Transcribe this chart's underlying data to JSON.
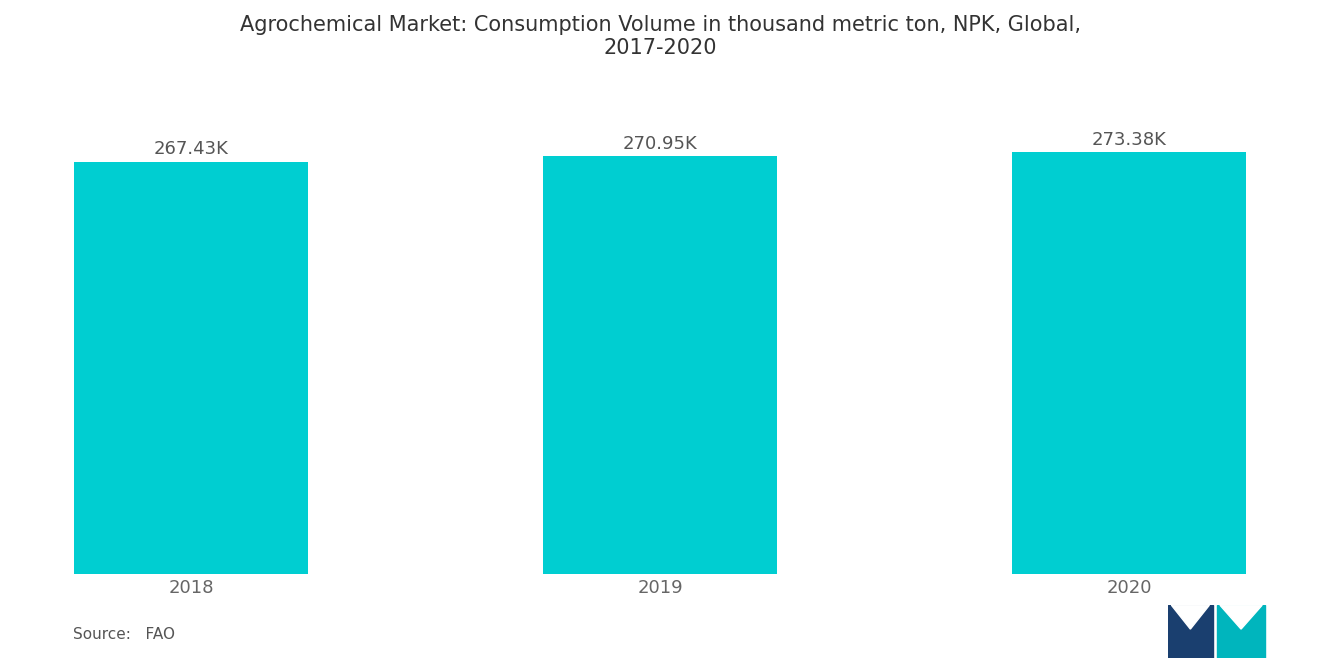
{
  "title": "Agrochemical Market: Consumption Volume in thousand metric ton, NPK, Global,\n2017-2020",
  "categories": [
    "2018",
    "2019",
    "2020"
  ],
  "values": [
    267.43,
    270.95,
    273.38
  ],
  "labels": [
    "267.43K",
    "270.95K",
    "273.38K"
  ],
  "bar_color": "#00CED1",
  "background_color": "#ffffff",
  "title_fontsize": 15,
  "label_fontsize": 13,
  "tick_fontsize": 13,
  "source_text": "Source:   FAO",
  "bar_width": 0.5,
  "ylim_min": 0,
  "ylim_max": 310
}
